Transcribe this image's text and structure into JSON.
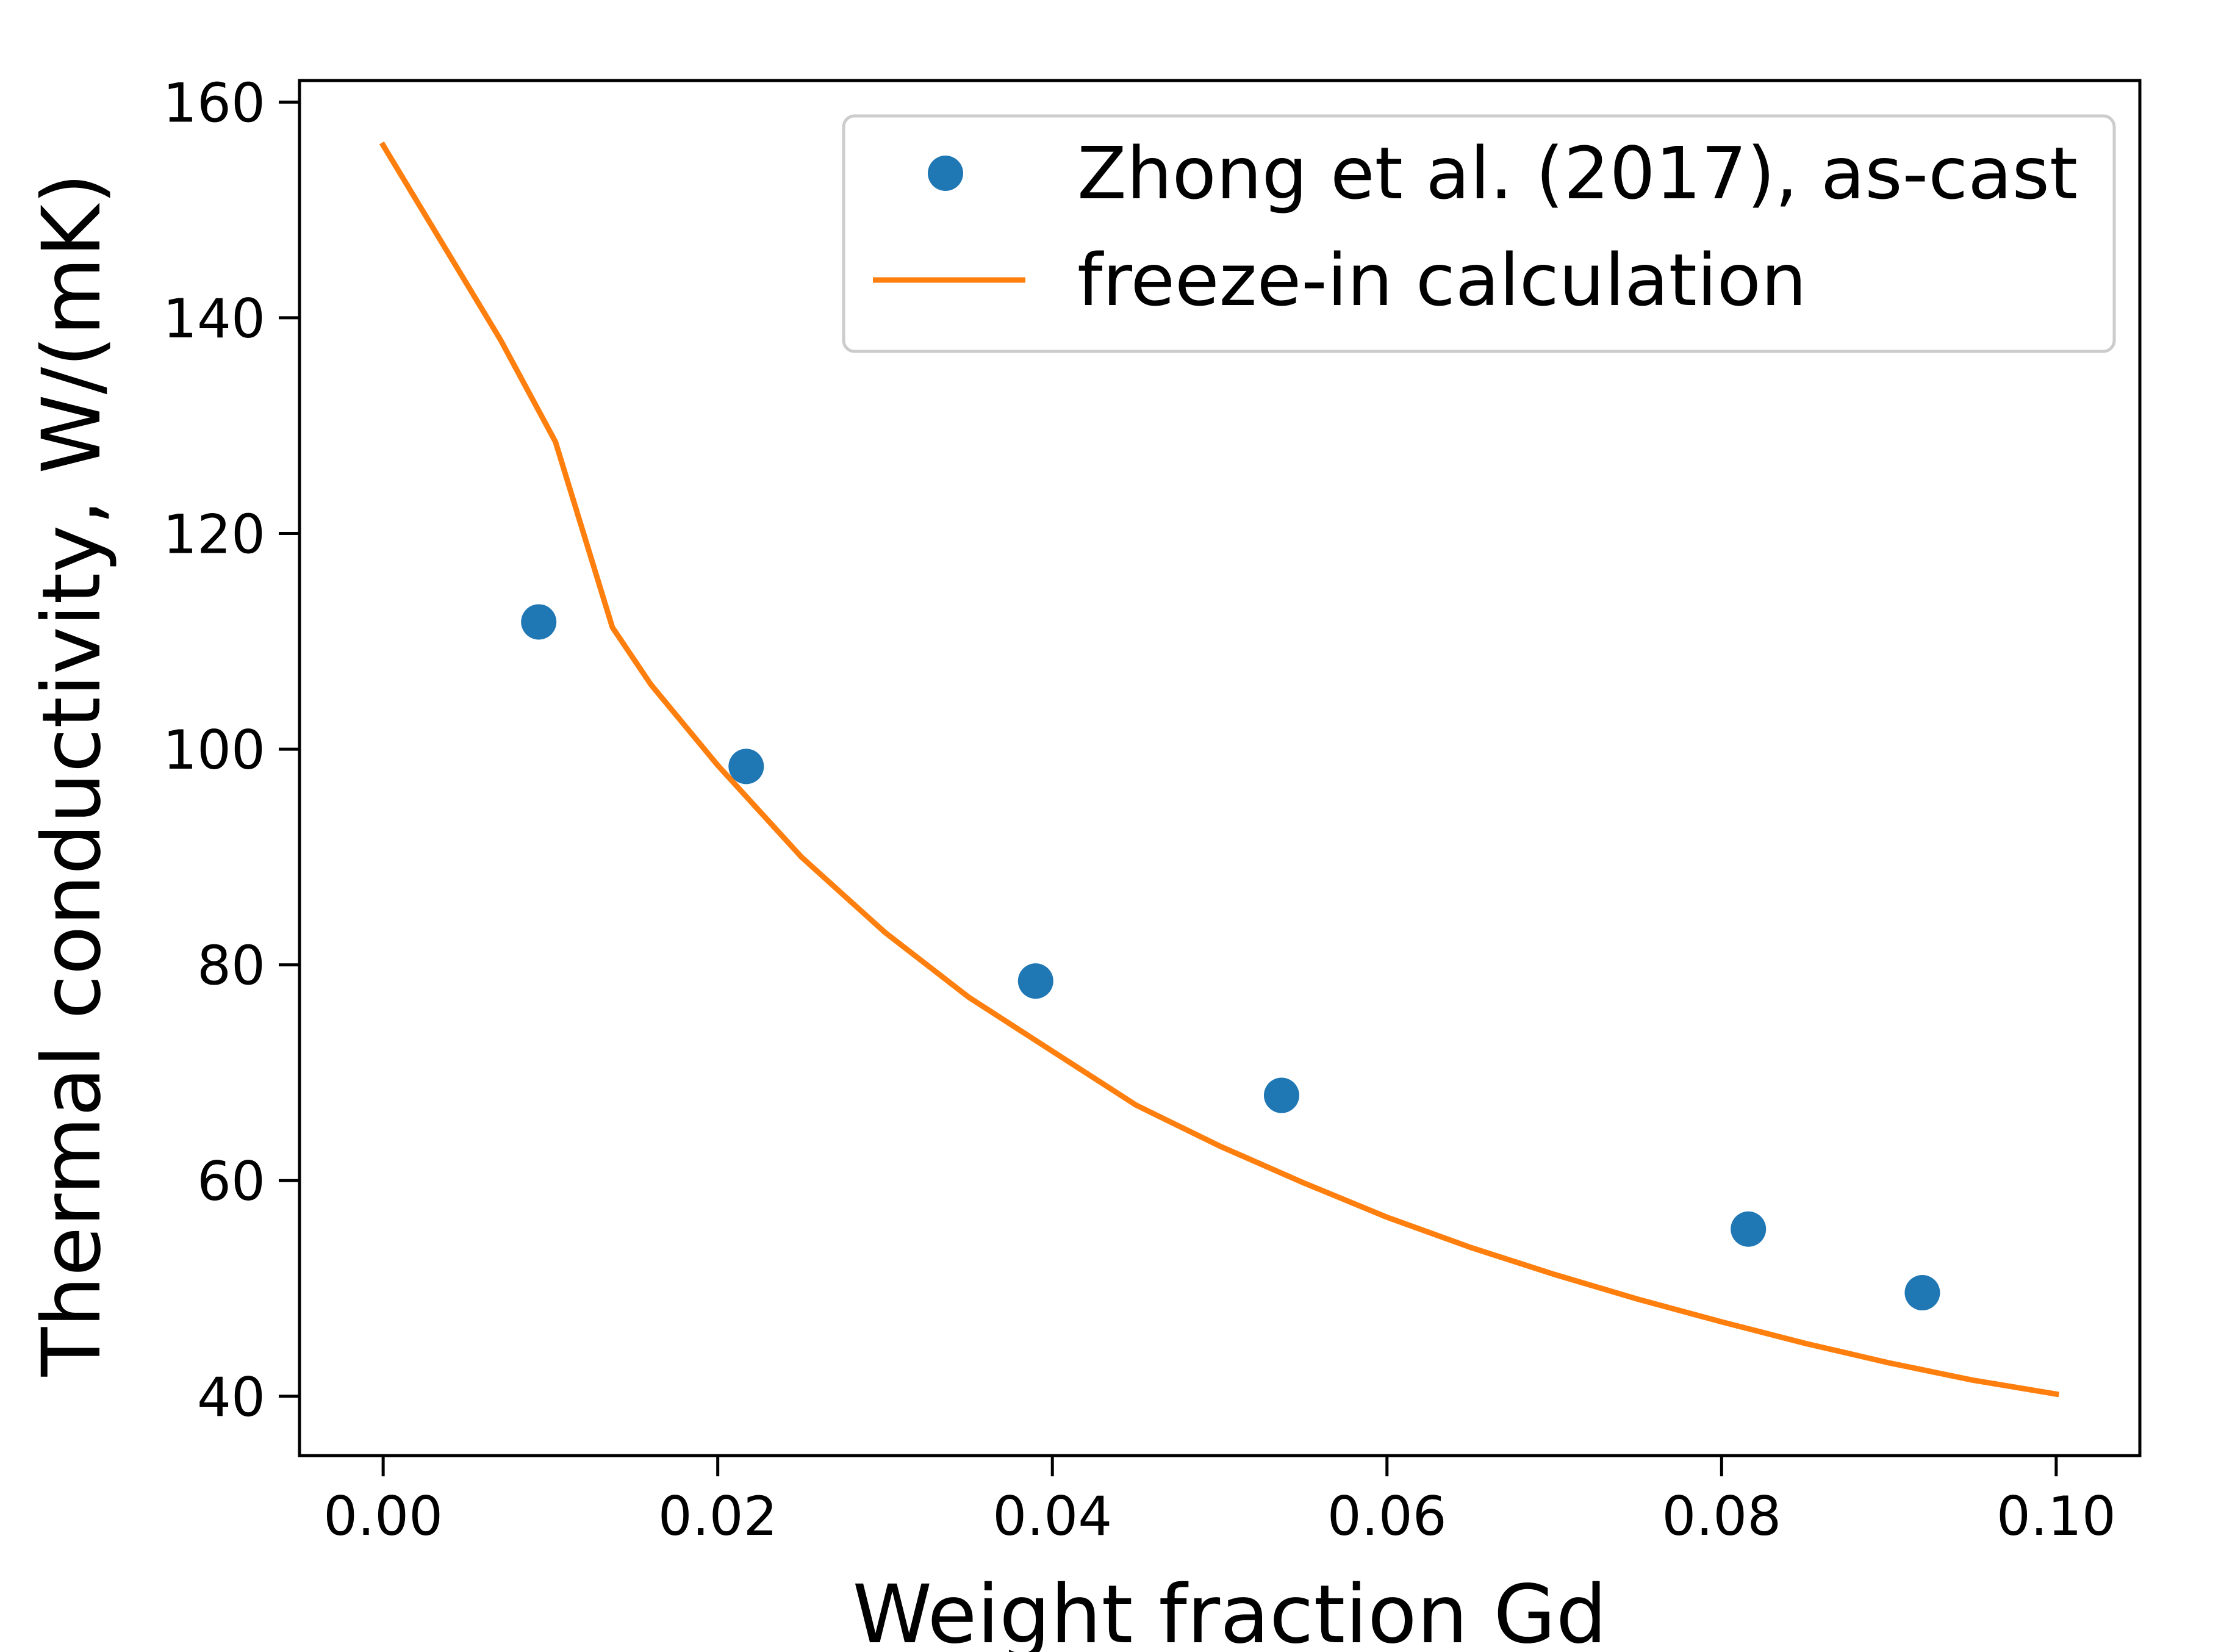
{
  "chart_data": {
    "type": "scatter",
    "title": "",
    "xlabel": "Weight fraction Gd",
    "ylabel": "Thermal conductivity, W/(mK)",
    "xlim": [
      -0.005,
      0.105
    ],
    "ylim": [
      34.5,
      162
    ],
    "x_ticks": [
      0.0,
      0.02,
      0.04,
      0.06,
      0.08,
      0.1
    ],
    "x_tick_labels": [
      "0.00",
      "0.02",
      "0.04",
      "0.06",
      "0.08",
      "0.10"
    ],
    "y_ticks": [
      40,
      60,
      80,
      100,
      120,
      140,
      160
    ],
    "y_tick_labels": [
      "40",
      "60",
      "80",
      "100",
      "120",
      "140",
      "160"
    ],
    "grid": false,
    "legend_position": "top-right",
    "series": [
      {
        "name": "Zhong et al. (2017), as-cast",
        "kind": "scatter",
        "color": "#1f77b4",
        "x": [
          0.0093,
          0.0217,
          0.039,
          0.0537,
          0.0816,
          0.092
        ],
        "y": [
          111.8,
          98.4,
          78.5,
          67.9,
          55.5,
          49.6
        ]
      },
      {
        "name": "freeze-in calculation",
        "kind": "line",
        "color": "#ff7f0e",
        "x": [
          0.0,
          0.007,
          0.0103,
          0.0137,
          0.016,
          0.02,
          0.025,
          0.03,
          0.035,
          0.04,
          0.045,
          0.05,
          0.055,
          0.06,
          0.065,
          0.07,
          0.075,
          0.08,
          0.085,
          0.09,
          0.095,
          0.1
        ],
        "y": [
          156.0,
          138.0,
          128.5,
          111.3,
          106.0,
          98.5,
          90.0,
          83.0,
          77.0,
          72.0,
          67.0,
          63.2,
          59.8,
          56.6,
          53.8,
          51.3,
          49.0,
          46.9,
          44.9,
          43.1,
          41.5,
          40.2
        ]
      }
    ]
  }
}
